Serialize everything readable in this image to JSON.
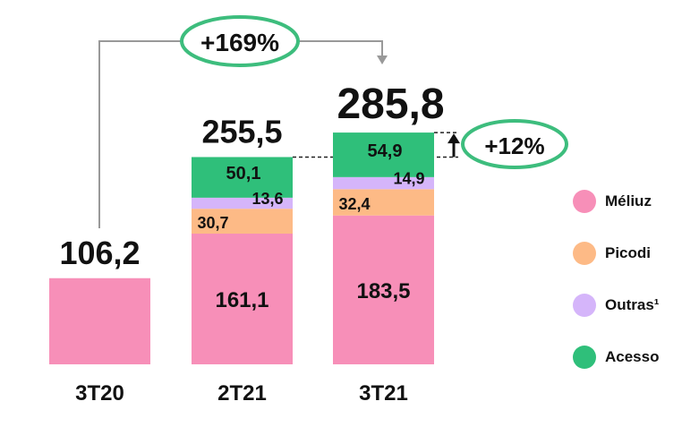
{
  "chart_data": {
    "type": "bar",
    "stacked": true,
    "categories": [
      "3T20",
      "2T21",
      "3T21"
    ],
    "series": [
      {
        "name": "Méliuz",
        "color": "#F78FB8",
        "values": [
          106.2,
          161.1,
          183.5
        ],
        "labels": [
          "",
          "161,1",
          "183,5"
        ]
      },
      {
        "name": "Picodi",
        "color": "#FDBA86",
        "values": [
          0,
          30.7,
          32.4
        ],
        "labels": [
          "",
          "30,7",
          "32,4"
        ]
      },
      {
        "name": "Outras¹",
        "color": "#D5B5FA",
        "values": [
          0,
          13.6,
          14.9
        ],
        "labels": [
          "",
          "13,6",
          "14,9"
        ]
      },
      {
        "name": "Acesso",
        "color": "#2FBF7A",
        "values": [
          0,
          50.1,
          54.9
        ],
        "labels": [
          "",
          "50,1",
          "54,9"
        ]
      }
    ],
    "totals": [
      "106,2",
      "255,5",
      "285,8"
    ],
    "annotations": {
      "growth_yoy": "+169%",
      "growth_qoq": "+12%"
    },
    "legend_position": "right",
    "grid": false,
    "ylim": [
      0,
      285.8
    ]
  },
  "colors": {
    "bubble_border": "#3DBD7D",
    "connector": "#999999"
  }
}
